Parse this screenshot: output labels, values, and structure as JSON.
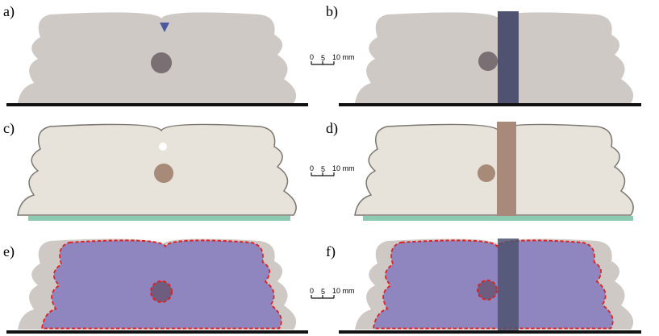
{
  "panels": [
    {
      "label": "a)"
    },
    {
      "label": "b)"
    },
    {
      "label": "c)"
    },
    {
      "label": "d)"
    },
    {
      "label": "e)"
    },
    {
      "label": "f)"
    }
  ],
  "scale_bars": [
    {
      "ticks": [
        "0",
        "5",
        "10 mm"
      ]
    },
    {
      "ticks": [
        "0",
        "5",
        "10 mm"
      ]
    },
    {
      "ticks": [
        "0",
        "5",
        "10 mm"
      ]
    }
  ]
}
